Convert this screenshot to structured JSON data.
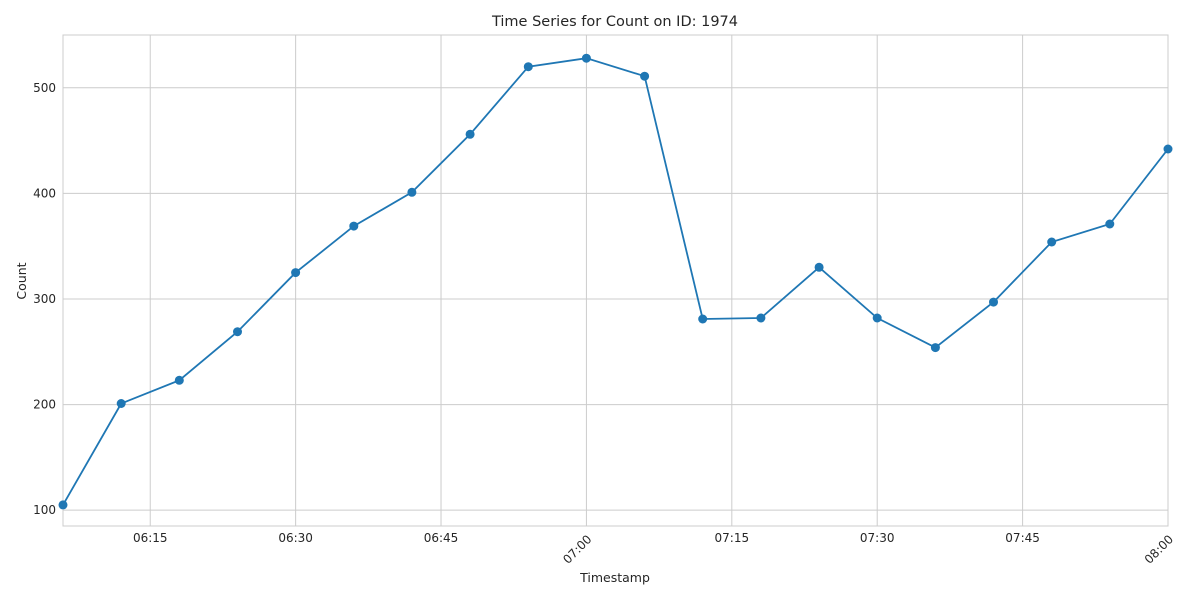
{
  "chart_data": {
    "type": "line",
    "title": "Time Series for Count on ID: 1974",
    "xlabel": "Timestamp",
    "ylabel": "Count",
    "x": [
      "06:06",
      "06:12",
      "06:18",
      "06:24",
      "06:30",
      "06:36",
      "06:42",
      "06:48",
      "06:54",
      "07:00",
      "07:06",
      "07:12",
      "07:18",
      "07:24",
      "07:30",
      "07:36",
      "07:42",
      "07:48",
      "07:54",
      "08:00"
    ],
    "series": [
      {
        "values": [
          105,
          201,
          223,
          269,
          325,
          369,
          401,
          456,
          520,
          528,
          511,
          281,
          282,
          330,
          282,
          254,
          297,
          354,
          371,
          442
        ]
      }
    ],
    "xlim": [
      "06:06",
      "08:00"
    ],
    "ylim": [
      85,
      550
    ],
    "x_ticks": [
      {
        "label": "06:15",
        "rotated": false
      },
      {
        "label": "06:30",
        "rotated": false
      },
      {
        "label": "06:45",
        "rotated": false
      },
      {
        "label": "07:00",
        "rotated": true
      },
      {
        "label": "07:15",
        "rotated": false
      },
      {
        "label": "07:30",
        "rotated": false
      },
      {
        "label": "07:45",
        "rotated": false
      },
      {
        "label": "08:00",
        "rotated": true
      }
    ],
    "y_ticks": [
      100,
      200,
      300,
      400,
      500
    ],
    "grid": true,
    "legend": false,
    "colors": {
      "line": "#1f77b4",
      "grid": "#cccccc",
      "frame": "#cccccc",
      "text": "#262626"
    }
  }
}
